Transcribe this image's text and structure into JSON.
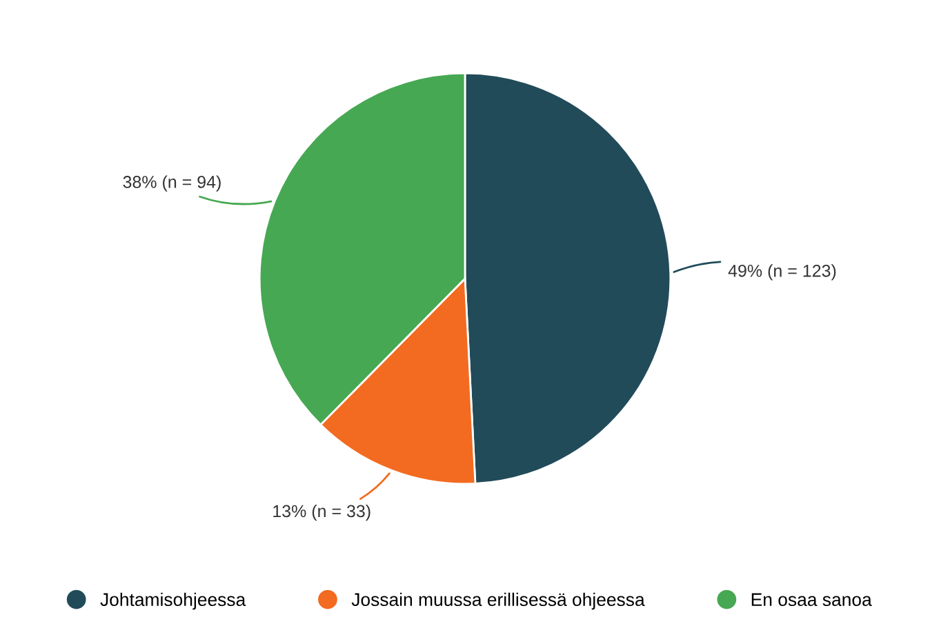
{
  "chart_data": {
    "type": "pie",
    "categories": [
      "Johtamisohjeessa",
      "Jossain muussa erillisessä ohjeessa",
      "En osaa sanoa"
    ],
    "values": [
      123,
      33,
      94
    ],
    "colors": [
      "#224b5a",
      "#f26b21",
      "#46a852"
    ],
    "value_labels": [
      "49% (n = 123)",
      "13% (n = 33)",
      "38% (n = 94)"
    ],
    "legend": "bottom"
  }
}
